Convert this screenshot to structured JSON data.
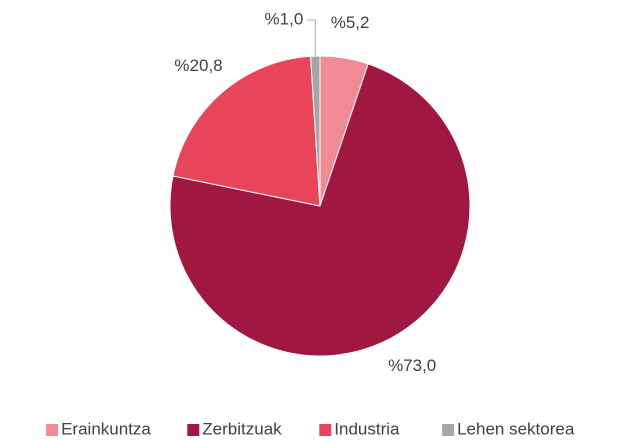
{
  "chart_data": {
    "type": "pie",
    "categories": [
      "Erainkuntza",
      "Zerbitzuak",
      "Industria",
      "Lehen sektorea"
    ],
    "values": [
      5.2,
      73.0,
      20.8,
      1.0
    ],
    "value_labels": [
      "%5,2",
      "%73,0",
      "%20,8",
      "%1,0"
    ],
    "colors": [
      "#f08a94",
      "#a01840",
      "#e8445a",
      "#a6a6a6"
    ],
    "legend": "bottom"
  }
}
